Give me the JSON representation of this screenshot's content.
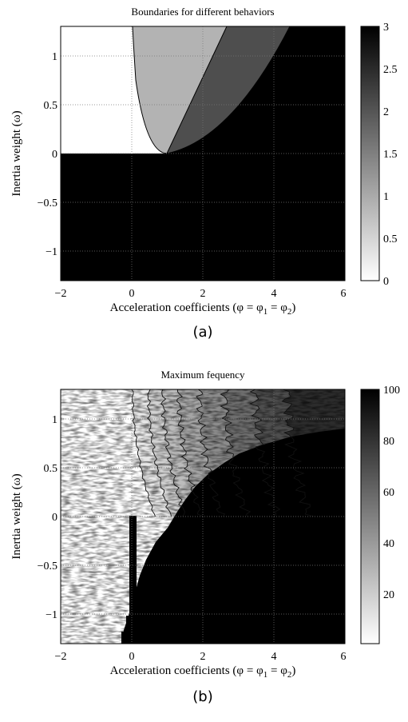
{
  "figure": {
    "panel_a_caption": "(a)",
    "panel_b_caption": "(b)"
  },
  "chart_data": [
    {
      "type": "heatmap",
      "title": "Boundaries for different behaviors",
      "xlabel": "Acceleration coefficients (φ = φ₁ = φ₂)",
      "xlabel_parts": [
        "Acceleration coefficients (",
        "φ",
        " = ",
        "φ",
        "1",
        " = ",
        "φ",
        "2",
        ")"
      ],
      "ylabel": "Inertia weight (ω)",
      "xlim": [
        -2,
        6
      ],
      "ylim": [
        -1.3,
        1.3
      ],
      "x_ticks": [
        -2,
        0,
        2,
        4,
        6
      ],
      "x_tick_labels": [
        "−2",
        "0",
        "2",
        "4",
        "6"
      ],
      "y_ticks": [
        1,
        0.5,
        0,
        -0.5,
        -1
      ],
      "y_tick_labels": [
        "1",
        "0.5",
        "0",
        "−0.5",
        "−1"
      ],
      "grid": true,
      "colormap": "gray (white = 0, black = 3)",
      "colorbar": {
        "min": 0,
        "max": 3,
        "ticks": [
          3,
          2.5,
          2,
          1.5,
          1,
          0.5,
          0
        ],
        "tick_labels": [
          "3",
          "2.5",
          "2",
          "1.5",
          "1",
          "0.5",
          "0"
        ]
      },
      "regions": [
        {
          "value": 3,
          "description": "w < 0, or w > ((phi/2)+1)^2/ phi... (outside convergence)"
        },
        {
          "value": 2.3,
          "description": "between line w = (phi/2) - 1 and parabola, phi >= 1"
        },
        {
          "value": 1.0,
          "description": "inside parabola w = ((phi/2)-1)^2 left of line"
        },
        {
          "value": 0,
          "description": "w >= 0 outside parabola, phi small"
        }
      ],
      "boundaries": {
        "parabola_vertex": [
          1,
          0
        ],
        "parabola_x_at_top": [
          -0.04,
          4.6
        ],
        "line_from": [
          1,
          0
        ],
        "line_to": [
          2.8,
          1.3
        ]
      }
    },
    {
      "type": "heatmap",
      "title": "Maximum fequency",
      "xlabel": "Acceleration coefficients (φ = φ₁ = φ₂)",
      "xlabel_parts": [
        "Acceleration coefficients (",
        "φ",
        " = ",
        "φ",
        "1",
        " = ",
        "φ",
        "2",
        ")"
      ],
      "ylabel": "Inertia weight (ω)",
      "xlim": [
        -2,
        6
      ],
      "ylim": [
        -1.3,
        1.3
      ],
      "x_ticks": [
        -2,
        0,
        2,
        4,
        6
      ],
      "x_tick_labels": [
        "−2",
        "0",
        "2",
        "4",
        "6"
      ],
      "y_ticks": [
        1,
        0.5,
        0,
        -0.5,
        -1
      ],
      "y_tick_labels": [
        "1",
        "0.5",
        "0",
        "−0.5",
        "−1"
      ],
      "grid": true,
      "colormap": "gray (white = low, black = 100)",
      "colorbar": {
        "min": 1,
        "max": 100,
        "ticks": [
          100,
          80,
          60,
          40,
          20
        ],
        "tick_labels": [
          "100",
          "80",
          "60",
          "40",
          "20"
        ]
      }
    }
  ]
}
